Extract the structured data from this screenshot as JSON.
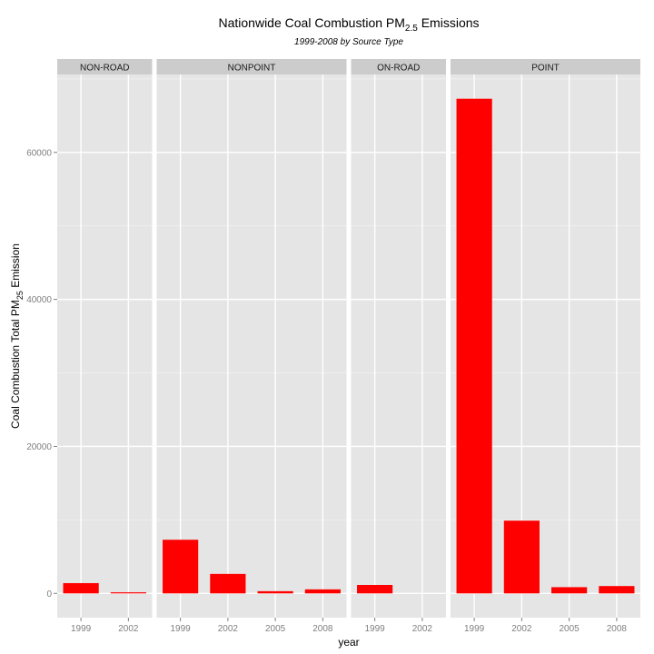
{
  "chart_data": {
    "type": "bar",
    "title": "Nationwide Coal Combustion PM",
    "title_sub": "2.5",
    "title_suffix": " Emissions",
    "subtitle": "1999-2008 by Source Type",
    "xlabel": "year",
    "ylabel_pre": "Coal Combustion Total PM",
    "ylabel_sub": "25",
    "ylabel_post": " Emission",
    "ylim": [
      -3300,
      70600
    ],
    "yticks": [
      0,
      20000,
      40000,
      60000
    ],
    "ytick_labels": [
      "0",
      "20000",
      "40000",
      "60000"
    ],
    "bar_color": "#ff0000",
    "panel_bg": "#e5e5e5",
    "strip_bg": "#cccccc",
    "facets": [
      {
        "name": "NON-ROAD",
        "categories": [
          "1999",
          "2002"
        ],
        "values": [
          1400,
          150
        ]
      },
      {
        "name": "NONPOINT",
        "categories": [
          "1999",
          "2002",
          "2005",
          "2008"
        ],
        "values": [
          7300,
          2650,
          300,
          550
        ]
      },
      {
        "name": "ON-ROAD",
        "categories": [
          "1999",
          "2002"
        ],
        "values": [
          1150,
          0
        ]
      },
      {
        "name": "POINT",
        "categories": [
          "1999",
          "2002",
          "2005",
          "2008"
        ],
        "values": [
          67300,
          9900,
          850,
          1000
        ]
      }
    ]
  }
}
